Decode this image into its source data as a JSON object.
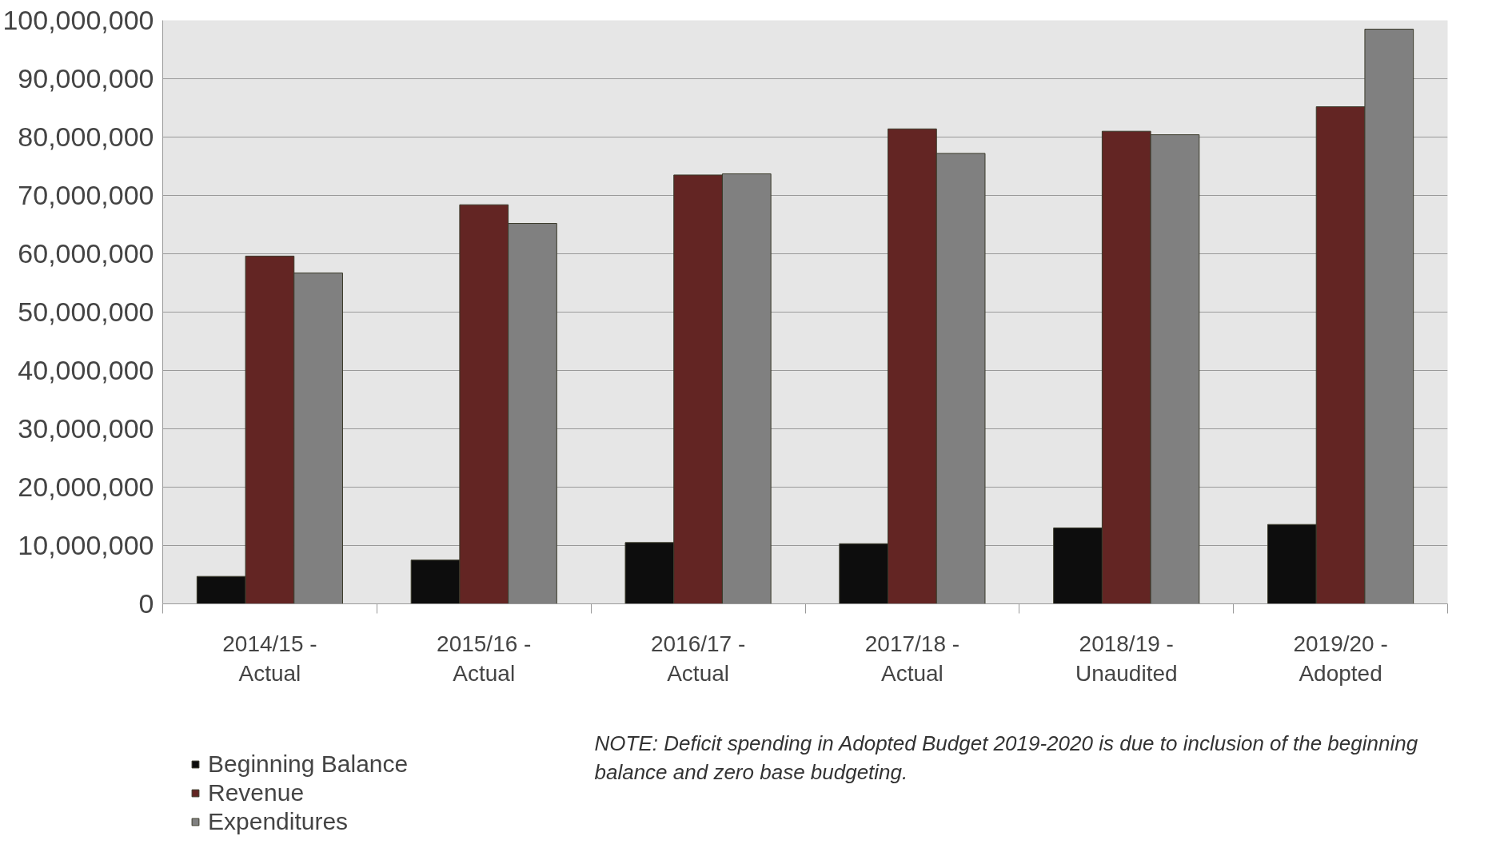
{
  "chart_data": {
    "type": "bar",
    "categories": [
      "2014/15 -\nActual",
      "2015/16 -\nActual",
      "2016/17 -\nActual",
      "2017/18 -\nActual",
      "2018/19 -\nUnaudited",
      "2019/20 -\nAdopted"
    ],
    "series": [
      {
        "name": "Beginning Balance",
        "color": "#0d0d0d",
        "values": [
          4700000,
          7500000,
          10500000,
          10300000,
          13000000,
          13600000
        ]
      },
      {
        "name": "Revenue",
        "color": "#632523",
        "values": [
          59600000,
          68400000,
          73500000,
          81400000,
          81000000,
          85200000
        ]
      },
      {
        "name": "Expenditures",
        "color": "#808080",
        "values": [
          56700000,
          65200000,
          73700000,
          77200000,
          80400000,
          98500000
        ]
      }
    ],
    "ylim": [
      0,
      100000000
    ],
    "yticks": [
      {
        "value": 0,
        "label": "0"
      },
      {
        "value": 10000000,
        "label": "10,000,000"
      },
      {
        "value": 20000000,
        "label": "20,000,000"
      },
      {
        "value": 30000000,
        "label": "30,000,000"
      },
      {
        "value": 40000000,
        "label": "40,000,000"
      },
      {
        "value": 50000000,
        "label": "50,000,000"
      },
      {
        "value": 60000000,
        "label": "60,000,000"
      },
      {
        "value": 70000000,
        "label": "70,000,000"
      },
      {
        "value": 80000000,
        "label": "80,000,000"
      },
      {
        "value": 90000000,
        "label": "90,000,000"
      },
      {
        "value": 100000000,
        "label": "100,000,000"
      }
    ],
    "grid": "y",
    "legend": "bottom left",
    "annotations": [
      "NOTE:  Deficit spending in Adopted Budget 2019-2020 is due to inclusion of the beginning\nbalance and zero base budgeting."
    ]
  }
}
